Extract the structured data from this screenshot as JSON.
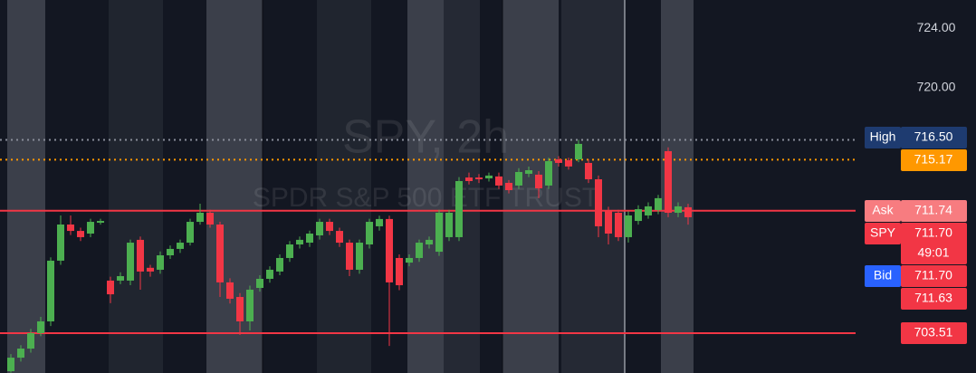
{
  "chart_data": {
    "type": "candlestick",
    "watermark": {
      "title": "SPY, 2h",
      "subtitle": "SPDR S&P 500 ETF TRUST"
    },
    "up_color": "#4caf50",
    "down_color": "#f23645",
    "ylim": [
      700.83,
      725.9
    ],
    "yticks": [
      {
        "value": 724,
        "label": "724.00"
      },
      {
        "value": 720,
        "label": "720.00"
      }
    ],
    "open": [
      700.95,
      701.86,
      702.47,
      703.51,
      704.3,
      708.38,
      710.81,
      710.38,
      710.2,
      710.93,
      707.04,
      707.04,
      707.04,
      709.78,
      707.9,
      707.77,
      708.74,
      709.17,
      709.59,
      710.99,
      711.6,
      710.81,
      706.92,
      705.94,
      704.3,
      706.55,
      707.16,
      707.65,
      708.56,
      709.47,
      709.59,
      710.08,
      710.99,
      710.38,
      709.59,
      707.77,
      709.47,
      710.69,
      711.18,
      708.56,
      708.25,
      708.56,
      709.47,
      708.98,
      709.96,
      709.96,
      713.97,
      713.97,
      713.91,
      714.04,
      713.61,
      713.43,
      714.22,
      714.16,
      713.43,
      715.19,
      715.13,
      715.19,
      714.95,
      713.85,
      711.72,
      711.6,
      709.96,
      711.05,
      711.42,
      711.78,
      715.74,
      711.6,
      711.97
    ],
    "high": [
      702.1,
      702.7,
      703.8,
      704.6,
      708.6,
      711.42,
      711.42,
      710.6,
      711.2,
      711.2,
      707.3,
      707.6,
      709.8,
      710.0,
      708.1,
      709.0,
      709.4,
      709.8,
      711.2,
      712.21,
      711.8,
      711.0,
      707.2,
      706.2,
      706.7,
      707.4,
      708.0,
      708.8,
      709.7,
      710.0,
      710.4,
      711.2,
      711.2,
      710.6,
      709.8,
      709.8,
      711.2,
      711.4,
      711.4,
      708.8,
      708.8,
      709.8,
      710.0,
      711.8,
      711.8,
      714.0,
      714.3,
      714.2,
      714.3,
      714.3,
      713.8,
      714.6,
      714.7,
      714.4,
      715.3,
      715.4,
      715.3,
      716.5,
      715.2,
      714.1,
      712.0,
      711.8,
      711.7,
      712.1,
      712.3,
      712.8,
      716.0,
      712.3,
      712.2
    ],
    "low": [
      700.85,
      701.6,
      702.2,
      703.3,
      703.99,
      708.1,
      710.1,
      709.7,
      709.96,
      710.8,
      705.52,
      706.8,
      706.73,
      706.43,
      707.3,
      707.5,
      708.5,
      708.9,
      709.4,
      710.8,
      710.6,
      705.94,
      705.5,
      703.39,
      703.69,
      706.3,
      706.9,
      707.4,
      708.3,
      709.2,
      709.3,
      709.8,
      710.1,
      709.3,
      707.34,
      707.5,
      709.2,
      710.4,
      702.65,
      706.4,
      708.0,
      708.3,
      709.2,
      708.7,
      709.7,
      709.7,
      713.5,
      713.6,
      713.7,
      713.2,
      712.9,
      713.2,
      714.0,
      712.58,
      713.2,
      714.7,
      714.5,
      715.0,
      713.6,
      709.96,
      709.47,
      709.7,
      709.6,
      710.8,
      711.2,
      711.5,
      711.3,
      711.3,
      710.8
    ],
    "close": [
      701.86,
      702.47,
      703.51,
      704.3,
      708.38,
      710.81,
      710.38,
      709.96,
      710.99,
      711.05,
      706.12,
      707.34,
      709.59,
      707.65,
      707.65,
      708.74,
      709.17,
      709.59,
      710.99,
      711.6,
      710.81,
      706.92,
      705.82,
      704.3,
      706.43,
      707.16,
      707.77,
      708.56,
      709.47,
      709.78,
      710.2,
      710.99,
      710.38,
      709.59,
      707.77,
      709.59,
      710.99,
      711.18,
      706.92,
      706.73,
      708.56,
      709.59,
      709.78,
      711.6,
      711.6,
      713.73,
      713.73,
      713.85,
      714.1,
      713.43,
      713.12,
      714.34,
      714.46,
      713.24,
      715.07,
      714.95,
      714.71,
      716.23,
      713.85,
      710.69,
      710.2,
      709.96,
      711.42,
      711.84,
      712.03,
      712.58,
      711.6,
      712.03,
      711.3
    ],
    "price_labels": [
      {
        "name": "High",
        "price": {
          "value": 716.5,
          "label": "716.50"
        },
        "color": "#1e3b70",
        "line": "dotted",
        "line_color": "#8a8e99"
      },
      {
        "price": {
          "value": 715.17,
          "label": "715.17"
        },
        "color": "#ff9800",
        "line": "dotted",
        "line_color": "#ff9800"
      },
      {
        "name": "Ask",
        "price": {
          "value": 711.74,
          "label": "711.74"
        },
        "color": "#f77c80",
        "line": "solid",
        "line_color": "#f23645"
      },
      {
        "name": "SPY",
        "price": {
          "value": 711.7,
          "label": "711.70"
        },
        "countdown": "49:01",
        "color": "#f23645"
      },
      {
        "name": "Bid",
        "price": {
          "value": 711.7,
          "label": "711.70"
        },
        "color": "#2962ff",
        "value_color": "#f23645"
      },
      {
        "price": {
          "value": 711.63,
          "label": "711.63"
        },
        "color": "#f23645"
      },
      {
        "price": {
          "value": 703.51,
          "label": "703.51"
        },
        "color": "#f23645",
        "line": "solid",
        "line_color": "#f23645"
      }
    ]
  }
}
